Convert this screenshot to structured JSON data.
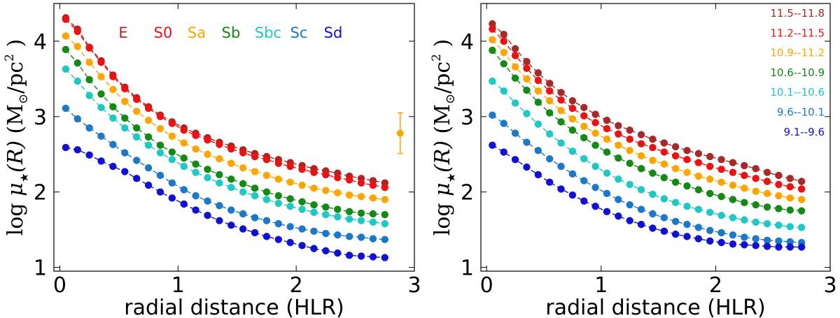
{
  "chart_data": [
    {
      "type": "scatter",
      "panel": "left",
      "title": "",
      "xlabel": "radial distance (HLR)",
      "ylabel": {
        "prefix": "log ",
        "mu": "μ",
        "star": "★",
        "arg": "(R)",
        "unit_open": " (M",
        "sun": "⊙",
        "unit_mid": "/pc",
        "sup": "2",
        "unit_close": " )"
      },
      "xlim": [
        -0.05,
        3.0
      ],
      "ylim": [
        0.95,
        4.5
      ],
      "xticks": [
        "0",
        "1",
        "2",
        "3"
      ],
      "yticks": [
        "1",
        "2",
        "3",
        "4"
      ],
      "legend_position": "top",
      "x": [
        0.05,
        0.15,
        0.25,
        0.35,
        0.45,
        0.55,
        0.65,
        0.75,
        0.85,
        0.95,
        1.05,
        1.15,
        1.25,
        1.35,
        1.45,
        1.55,
        1.65,
        1.75,
        1.85,
        1.95,
        2.05,
        2.15,
        2.25,
        2.35,
        2.45,
        2.55,
        2.65,
        2.75
      ],
      "series": [
        {
          "name": "E",
          "color": "#b22222",
          "values": [
            4.31,
            4.16,
            3.92,
            3.74,
            3.55,
            3.39,
            3.25,
            3.13,
            3.02,
            2.93,
            2.85,
            2.78,
            2.72,
            2.66,
            2.61,
            2.56,
            2.51,
            2.47,
            2.43,
            2.39,
            2.35,
            2.31,
            2.28,
            2.25,
            2.21,
            2.18,
            2.15,
            2.12
          ]
        },
        {
          "name": "S0",
          "color": "#ee1111",
          "values": [
            4.29,
            4.13,
            3.91,
            3.72,
            3.53,
            3.37,
            3.23,
            3.11,
            3.0,
            2.91,
            2.82,
            2.75,
            2.69,
            2.63,
            2.57,
            2.52,
            2.47,
            2.43,
            2.38,
            2.34,
            2.3,
            2.26,
            2.23,
            2.19,
            2.16,
            2.12,
            2.09,
            2.06
          ]
        },
        {
          "name": "Sa",
          "color": "#ffa500",
          "values": [
            4.07,
            3.93,
            3.72,
            3.53,
            3.36,
            3.2,
            3.07,
            2.95,
            2.84,
            2.74,
            2.65,
            2.57,
            2.5,
            2.44,
            2.38,
            2.32,
            2.27,
            2.22,
            2.17,
            2.13,
            2.09,
            2.05,
            2.02,
            1.99,
            1.96,
            1.94,
            1.92,
            1.9
          ]
        },
        {
          "name": "Sb",
          "color": "#138a13",
          "values": [
            3.89,
            3.71,
            3.49,
            3.3,
            3.13,
            2.98,
            2.85,
            2.73,
            2.62,
            2.53,
            2.45,
            2.37,
            2.3,
            2.23,
            2.17,
            2.11,
            2.05,
            2.0,
            1.95,
            1.91,
            1.87,
            1.83,
            1.8,
            1.77,
            1.74,
            1.72,
            1.71,
            1.7
          ]
        },
        {
          "name": "Sbc",
          "color": "#1ec9c3",
          "values": [
            3.63,
            3.47,
            3.28,
            3.12,
            2.98,
            2.85,
            2.73,
            2.62,
            2.52,
            2.43,
            2.34,
            2.26,
            2.19,
            2.12,
            2.06,
            2.0,
            1.95,
            1.9,
            1.85,
            1.81,
            1.77,
            1.73,
            1.7,
            1.67,
            1.64,
            1.62,
            1.6,
            1.58
          ]
        },
        {
          "name": "Sc",
          "color": "#1c78c8",
          "values": [
            3.11,
            2.97,
            2.85,
            2.74,
            2.63,
            2.52,
            2.42,
            2.32,
            2.22,
            2.12,
            2.03,
            1.95,
            1.88,
            1.82,
            1.76,
            1.71,
            1.66,
            1.62,
            1.58,
            1.54,
            1.51,
            1.48,
            1.45,
            1.43,
            1.41,
            1.4,
            1.38,
            1.37
          ]
        },
        {
          "name": "Sd",
          "color": "#1111d6",
          "values": [
            2.59,
            2.56,
            2.49,
            2.41,
            2.34,
            2.27,
            2.18,
            2.09,
            2.0,
            1.92,
            1.84,
            1.76,
            1.69,
            1.62,
            1.56,
            1.51,
            1.46,
            1.41,
            1.37,
            1.33,
            1.29,
            1.25,
            1.22,
            1.19,
            1.16,
            1.15,
            1.14,
            1.13
          ]
        }
      ],
      "error_bar": {
        "x": 2.88,
        "y": 2.78,
        "yerr": 0.27,
        "color": "#ffa500"
      }
    },
    {
      "type": "scatter",
      "panel": "right",
      "title": "",
      "xlabel": "radial distance (HLR)",
      "ylabel": {
        "prefix": "log ",
        "mu": "μ",
        "star": "★",
        "arg": "(R)",
        "unit_open": " (M",
        "sun": "⊙",
        "unit_mid": "/pc",
        "sup": "2",
        "unit_close": " )"
      },
      "xlim": [
        -0.05,
        3.0
      ],
      "ylim": [
        0.95,
        4.5
      ],
      "xticks": [
        "0",
        "1",
        "2",
        "3"
      ],
      "yticks": [
        "1",
        "2",
        "3",
        "4"
      ],
      "legend_position": "top-right",
      "x": [
        0.05,
        0.15,
        0.25,
        0.35,
        0.45,
        0.55,
        0.65,
        0.75,
        0.85,
        0.95,
        1.05,
        1.15,
        1.25,
        1.35,
        1.45,
        1.55,
        1.65,
        1.75,
        1.85,
        1.95,
        2.05,
        2.15,
        2.25,
        2.35,
        2.45,
        2.55,
        2.65,
        2.75
      ],
      "series": [
        {
          "name": "11.5--11.8",
          "color": "#a52a2a",
          "values": [
            4.23,
            4.09,
            3.9,
            3.73,
            3.58,
            3.44,
            3.32,
            3.21,
            3.12,
            3.03,
            2.95,
            2.88,
            2.82,
            2.76,
            2.7,
            2.65,
            2.6,
            2.55,
            2.51,
            2.47,
            2.43,
            2.39,
            2.35,
            2.31,
            2.26,
            2.22,
            2.18,
            2.14
          ]
        },
        {
          "name": "11.2--11.5",
          "color": "#ee1111",
          "values": [
            4.16,
            4.0,
            3.81,
            3.64,
            3.48,
            3.34,
            3.22,
            3.11,
            3.01,
            2.92,
            2.84,
            2.77,
            2.7,
            2.64,
            2.59,
            2.53,
            2.48,
            2.43,
            2.39,
            2.34,
            2.3,
            2.26,
            2.22,
            2.18,
            2.14,
            2.1,
            2.07,
            2.04
          ]
        },
        {
          "name": "10.9--11.2",
          "color": "#ffa500",
          "values": [
            4.02,
            3.85,
            3.66,
            3.5,
            3.34,
            3.21,
            3.08,
            2.97,
            2.87,
            2.78,
            2.7,
            2.62,
            2.55,
            2.48,
            2.42,
            2.37,
            2.31,
            2.26,
            2.21,
            2.17,
            2.13,
            2.09,
            2.05,
            2.01,
            1.98,
            1.95,
            1.92,
            1.9
          ]
        },
        {
          "name": "10.6--10.9",
          "color": "#138a13",
          "values": [
            3.88,
            3.7,
            3.51,
            3.35,
            3.19,
            3.05,
            2.93,
            2.82,
            2.72,
            2.62,
            2.53,
            2.45,
            2.38,
            2.31,
            2.25,
            2.19,
            2.13,
            2.08,
            2.03,
            1.98,
            1.94,
            1.9,
            1.86,
            1.83,
            1.8,
            1.78,
            1.76,
            1.75
          ]
        },
        {
          "name": "10.1--10.6",
          "color": "#1ec9c3",
          "values": [
            3.47,
            3.34,
            3.18,
            3.04,
            2.9,
            2.77,
            2.65,
            2.54,
            2.44,
            2.34,
            2.25,
            2.17,
            2.1,
            2.03,
            1.97,
            1.91,
            1.86,
            1.81,
            1.77,
            1.73,
            1.69,
            1.66,
            1.63,
            1.6,
            1.58,
            1.56,
            1.54,
            1.53
          ]
        },
        {
          "name": "9.6--10.1",
          "color": "#1c78c8",
          "values": [
            3.02,
            2.91,
            2.78,
            2.66,
            2.55,
            2.44,
            2.34,
            2.24,
            2.15,
            2.06,
            1.98,
            1.9,
            1.83,
            1.77,
            1.71,
            1.66,
            1.61,
            1.57,
            1.53,
            1.49,
            1.46,
            1.43,
            1.4,
            1.38,
            1.36,
            1.35,
            1.34,
            1.33
          ]
        },
        {
          "name": "9.1--9.6",
          "color": "#1111d6",
          "values": [
            2.62,
            2.53,
            2.43,
            2.33,
            2.23,
            2.13,
            2.04,
            1.96,
            1.88,
            1.81,
            1.74,
            1.68,
            1.62,
            1.57,
            1.52,
            1.48,
            1.44,
            1.41,
            1.38,
            1.35,
            1.33,
            1.31,
            1.3,
            1.29,
            1.28,
            1.27,
            1.27,
            1.27
          ]
        }
      ]
    }
  ]
}
